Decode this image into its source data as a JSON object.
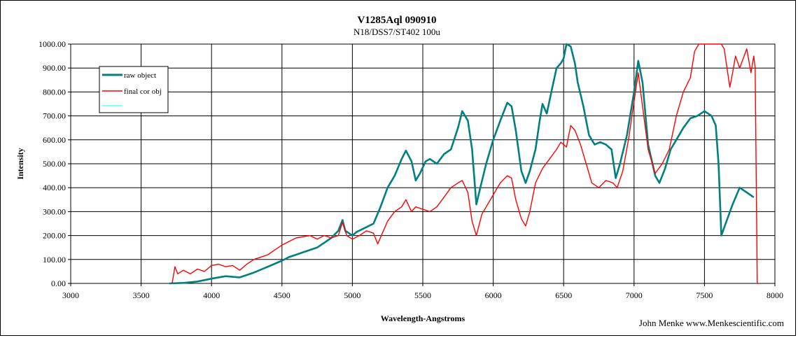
{
  "chart_data": {
    "type": "line",
    "title": "V1285Aql 090910",
    "subtitle": "N18/DSS7/ST402  100u",
    "xlabel": "Wavelength-Angstroms",
    "ylabel": "Intensity",
    "credit": "John Menke www.Menkescientific.com",
    "xlim": [
      3000,
      8000
    ],
    "ylim": [
      0,
      1000
    ],
    "x_ticks": [
      "3000",
      "3500",
      "4000",
      "4500",
      "5000",
      "5500",
      "6000",
      "6500",
      "7000",
      "7500",
      "8000"
    ],
    "y_ticks": [
      "0.00",
      "100.00",
      "200.00",
      "300.00",
      "400.00",
      "500.00",
      "600.00",
      "700.00",
      "800.00",
      "900.00",
      "1000.00"
    ],
    "grid": true,
    "legend_position": "top-left",
    "series": [
      {
        "name": "raw object",
        "color": "#008080",
        "points": [
          [
            3700,
            0
          ],
          [
            3800,
            2
          ],
          [
            3900,
            8
          ],
          [
            4000,
            20
          ],
          [
            4100,
            30
          ],
          [
            4200,
            25
          ],
          [
            4300,
            45
          ],
          [
            4400,
            70
          ],
          [
            4500,
            95
          ],
          [
            4550,
            110
          ],
          [
            4600,
            120
          ],
          [
            4650,
            130
          ],
          [
            4700,
            140
          ],
          [
            4750,
            150
          ],
          [
            4800,
            170
          ],
          [
            4850,
            190
          ],
          [
            4900,
            220
          ],
          [
            4930,
            265
          ],
          [
            4950,
            220
          ],
          [
            5000,
            200
          ],
          [
            5030,
            215
          ],
          [
            5100,
            235
          ],
          [
            5150,
            250
          ],
          [
            5200,
            320
          ],
          [
            5250,
            400
          ],
          [
            5300,
            450
          ],
          [
            5350,
            520
          ],
          [
            5380,
            555
          ],
          [
            5420,
            510
          ],
          [
            5450,
            430
          ],
          [
            5480,
            460
          ],
          [
            5520,
            510
          ],
          [
            5550,
            520
          ],
          [
            5600,
            500
          ],
          [
            5650,
            540
          ],
          [
            5700,
            560
          ],
          [
            5750,
            650
          ],
          [
            5780,
            720
          ],
          [
            5820,
            680
          ],
          [
            5850,
            560
          ],
          [
            5880,
            330
          ],
          [
            5900,
            380
          ],
          [
            5950,
            500
          ],
          [
            6000,
            600
          ],
          [
            6050,
            680
          ],
          [
            6100,
            755
          ],
          [
            6130,
            740
          ],
          [
            6160,
            640
          ],
          [
            6200,
            470
          ],
          [
            6230,
            420
          ],
          [
            6260,
            470
          ],
          [
            6300,
            560
          ],
          [
            6330,
            680
          ],
          [
            6350,
            750
          ],
          [
            6380,
            710
          ],
          [
            6420,
            820
          ],
          [
            6450,
            900
          ],
          [
            6480,
            920
          ],
          [
            6500,
            940
          ],
          [
            6520,
            1000
          ],
          [
            6550,
            990
          ],
          [
            6580,
            920
          ],
          [
            6600,
            840
          ],
          [
            6640,
            740
          ],
          [
            6680,
            620
          ],
          [
            6720,
            580
          ],
          [
            6760,
            590
          ],
          [
            6800,
            580
          ],
          [
            6840,
            560
          ],
          [
            6870,
            440
          ],
          [
            6900,
            500
          ],
          [
            6950,
            620
          ],
          [
            7000,
            800
          ],
          [
            7030,
            930
          ],
          [
            7060,
            840
          ],
          [
            7100,
            580
          ],
          [
            7150,
            450
          ],
          [
            7180,
            420
          ],
          [
            7220,
            480
          ],
          [
            7260,
            560
          ],
          [
            7300,
            600
          ],
          [
            7350,
            650
          ],
          [
            7400,
            690
          ],
          [
            7450,
            700
          ],
          [
            7500,
            720
          ],
          [
            7550,
            700
          ],
          [
            7580,
            660
          ],
          [
            7600,
            500
          ],
          [
            7620,
            200
          ],
          [
            7650,
            250
          ],
          [
            7700,
            330
          ],
          [
            7750,
            400
          ],
          [
            7800,
            380
          ],
          [
            7850,
            360
          ]
        ]
      },
      {
        "name": "final cor obj",
        "color": "#ff0000",
        "points": [
          [
            3720,
            0
          ],
          [
            3740,
            70
          ],
          [
            3760,
            40
          ],
          [
            3800,
            55
          ],
          [
            3850,
            40
          ],
          [
            3900,
            60
          ],
          [
            3950,
            50
          ],
          [
            4000,
            75
          ],
          [
            4050,
            80
          ],
          [
            4100,
            70
          ],
          [
            4150,
            75
          ],
          [
            4200,
            55
          ],
          [
            4250,
            80
          ],
          [
            4300,
            100
          ],
          [
            4350,
            110
          ],
          [
            4400,
            120
          ],
          [
            4450,
            140
          ],
          [
            4500,
            160
          ],
          [
            4550,
            175
          ],
          [
            4600,
            190
          ],
          [
            4650,
            195
          ],
          [
            4700,
            200
          ],
          [
            4750,
            185
          ],
          [
            4800,
            200
          ],
          [
            4850,
            190
          ],
          [
            4900,
            200
          ],
          [
            4930,
            255
          ],
          [
            4960,
            200
          ],
          [
            5000,
            185
          ],
          [
            5050,
            200
          ],
          [
            5100,
            220
          ],
          [
            5150,
            210
          ],
          [
            5180,
            165
          ],
          [
            5220,
            220
          ],
          [
            5250,
            260
          ],
          [
            5300,
            300
          ],
          [
            5350,
            320
          ],
          [
            5380,
            350
          ],
          [
            5420,
            300
          ],
          [
            5450,
            320
          ],
          [
            5500,
            310
          ],
          [
            5550,
            300
          ],
          [
            5600,
            320
          ],
          [
            5650,
            360
          ],
          [
            5700,
            400
          ],
          [
            5750,
            420
          ],
          [
            5780,
            430
          ],
          [
            5820,
            380
          ],
          [
            5850,
            260
          ],
          [
            5880,
            200
          ],
          [
            5920,
            290
          ],
          [
            5960,
            330
          ],
          [
            6000,
            370
          ],
          [
            6050,
            420
          ],
          [
            6100,
            450
          ],
          [
            6130,
            440
          ],
          [
            6160,
            350
          ],
          [
            6200,
            270
          ],
          [
            6230,
            240
          ],
          [
            6260,
            300
          ],
          [
            6300,
            420
          ],
          [
            6350,
            480
          ],
          [
            6400,
            520
          ],
          [
            6450,
            560
          ],
          [
            6480,
            590
          ],
          [
            6520,
            570
          ],
          [
            6550,
            660
          ],
          [
            6580,
            640
          ],
          [
            6620,
            580
          ],
          [
            6660,
            500
          ],
          [
            6700,
            420
          ],
          [
            6750,
            400
          ],
          [
            6800,
            430
          ],
          [
            6850,
            420
          ],
          [
            6880,
            400
          ],
          [
            6920,
            470
          ],
          [
            6960,
            600
          ],
          [
            7000,
            760
          ],
          [
            7030,
            880
          ],
          [
            7060,
            740
          ],
          [
            7100,
            560
          ],
          [
            7150,
            460
          ],
          [
            7200,
            500
          ],
          [
            7250,
            560
          ],
          [
            7300,
            700
          ],
          [
            7350,
            800
          ],
          [
            7400,
            860
          ],
          [
            7430,
            970
          ],
          [
            7460,
            1000
          ],
          [
            7620,
            1000
          ],
          [
            7640,
            980
          ],
          [
            7680,
            820
          ],
          [
            7700,
            880
          ],
          [
            7720,
            950
          ],
          [
            7750,
            900
          ],
          [
            7800,
            980
          ],
          [
            7830,
            880
          ],
          [
            7850,
            950
          ],
          [
            7860,
            900
          ],
          [
            7870,
            300
          ],
          [
            7875,
            0
          ],
          [
            7880,
            0
          ]
        ]
      },
      {
        "name": "",
        "color": "#00ffff",
        "points": []
      }
    ]
  }
}
